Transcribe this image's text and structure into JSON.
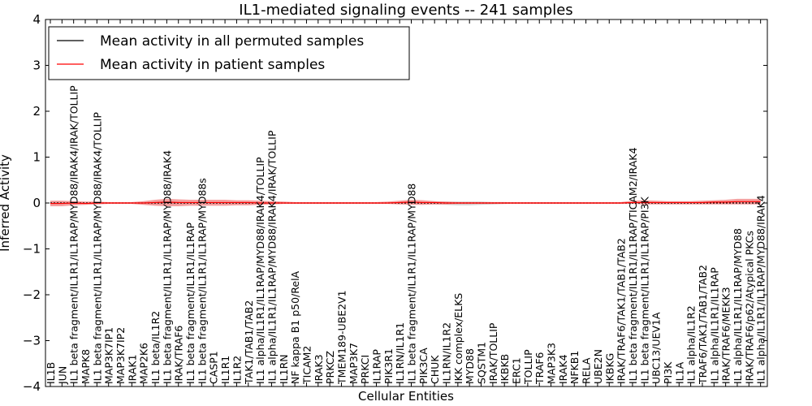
{
  "chart_data": {
    "type": "line",
    "title": "IL1-mediated signaling events -- 241 samples",
    "xlabel": "Cellular Entities",
    "ylabel": "Inferred Activity",
    "ylim": [
      -4,
      4
    ],
    "yticks": [
      -4,
      -3,
      -2,
      -1,
      0,
      1,
      2,
      3,
      4
    ],
    "grid": false,
    "legend_position": "top-left",
    "categories": [
      "IL1B",
      "JUN",
      "IL1 beta fragment/IL1R1/IL1RAP/MYD88/IRAK4/IRAK/TOLLIP",
      "MAPK8",
      "IL1 beta fragment/IL1R1/IL1RAP/MYD88/IRAK4/TOLLIP",
      "MAP3K7IP1",
      "MAP3K7IP2",
      "IRAK1",
      "MAP2K6",
      "IL1 beta/IL1R2",
      "IL1 beta fragment/IL1R1/IL1RAP/MYD88/IRAK4",
      "IRAK/TRAF6",
      "IL1 beta fragment/IL1R1/IL1RAP",
      "IL1 beta fragment/IL1R1/IL1RAP/MYD88s",
      "CASP1",
      "IL1R1",
      "IL1R2",
      "TAK1/TAB1/TAB2",
      "IL1 alpha/IL1R1/IL1RAP/MYD88/IRAK4/TOLLIP",
      "IL1 alpha/IL1R1/IL1RAP/MYD88/IRAK4/IRAK/TOLLIP",
      "IL1RN",
      "NF kappa B1 p50/RelA",
      "TICAM2",
      "IRAK3",
      "PRKCZ",
      "TMEM189-UBE2V1",
      "MAP3K7",
      "PRKCI",
      "IL1RAP",
      "PIK3R1",
      "IL1RN/IL1R1",
      "IL1 beta fragment/IL1R1/IL1RAP/MYD88",
      "PIK3CA",
      "CHUK",
      "IL1RN/IL1R2",
      "IKK complex/ELKS",
      "MYD88",
      "SQSTM1",
      "IRAK/TOLLIP",
      "IKBKB",
      "ERC1",
      "TOLLIP",
      "TRAF6",
      "MAP3K3",
      "IRAK4",
      "NFKB1",
      "RELA",
      "UBE2N",
      "IKBKG",
      "IRAK/TRAF6/TAK1/TAB1/TAB2",
      "IL1 beta fragment/IL1R1/IL1RAP/TICAM2/IRAK4",
      "IL1 beta fragment/IL1R1/IL1RAP/PI3K",
      "UBC13/UEV1A",
      "PI3K",
      "IL1A",
      "IL1 alpha/IL1R2",
      "TRAF6/TAK1/TAB1/TAB2",
      "IL1 alpha/IL1R1/IL1RAP",
      "IRAK/TRAF6/MEKK3",
      "IL1 alpha/IL1R1/IL1RAP/MYD88",
      "IRAK/TRAF6/p62/Atypical PKCs",
      "IL1 alpha/IL1R1/IL1RAP/MYD88/IRAK4"
    ],
    "series": [
      {
        "name": "Mean activity in all permuted samples",
        "color": "#000000",
        "values": [
          0,
          0,
          0,
          0,
          0,
          0,
          0,
          0,
          0,
          0,
          0,
          0,
          0,
          0,
          0,
          0,
          0,
          0,
          0,
          0,
          0,
          0,
          0,
          0,
          0,
          0,
          0,
          0,
          0,
          0,
          0,
          0,
          0,
          0,
          0,
          0,
          0,
          0,
          0,
          0,
          0,
          0,
          0,
          0,
          0,
          0,
          0,
          0,
          0,
          0,
          0,
          0,
          0,
          0,
          0,
          0,
          0,
          0,
          0,
          0,
          0,
          0
        ],
        "band_low": [
          -0.03,
          -0.03,
          -0.02,
          -0.02,
          -0.02,
          -0.01,
          -0.01,
          -0.01,
          -0.02,
          -0.03,
          -0.03,
          -0.03,
          -0.02,
          -0.02,
          -0.02,
          -0.02,
          -0.02,
          -0.02,
          -0.02,
          -0.02,
          -0.01,
          -0.01,
          -0.01,
          -0.01,
          -0.01,
          -0.01,
          -0.01,
          -0.01,
          -0.01,
          -0.01,
          -0.02,
          -0.02,
          -0.02,
          -0.03,
          -0.04,
          -0.05,
          -0.05,
          -0.04,
          -0.03,
          -0.02,
          -0.01,
          -0.01,
          -0.01,
          -0.01,
          -0.01,
          -0.01,
          -0.01,
          -0.01,
          -0.01,
          -0.01,
          -0.01,
          -0.02,
          -0.02,
          -0.02,
          -0.02,
          -0.02,
          -0.02,
          -0.02,
          -0.02,
          -0.02,
          -0.02,
          -0.02
        ],
        "band_high": [
          0.03,
          0.03,
          0.02,
          0.02,
          0.02,
          0.01,
          0.01,
          0.01,
          0.02,
          0.03,
          0.03,
          0.03,
          0.02,
          0.02,
          0.02,
          0.02,
          0.02,
          0.02,
          0.02,
          0.02,
          0.01,
          0.01,
          0.01,
          0.01,
          0.01,
          0.01,
          0.01,
          0.01,
          0.01,
          0.01,
          0.02,
          0.02,
          0.02,
          0.03,
          0.03,
          0.03,
          0.03,
          0.03,
          0.02,
          0.02,
          0.01,
          0.01,
          0.01,
          0.01,
          0.01,
          0.01,
          0.01,
          0.01,
          0.01,
          0.01,
          0.01,
          0.02,
          0.02,
          0.02,
          0.02,
          0.02,
          0.02,
          0.02,
          0.02,
          0.02,
          0.02,
          0.02
        ],
        "band_color": "#bbbbbb"
      },
      {
        "name": "Mean activity in patient samples",
        "color": "#ff0000",
        "values": [
          -0.01,
          -0.01,
          0,
          -0.01,
          0,
          0,
          0,
          0,
          0,
          0.01,
          0.02,
          0.01,
          0.01,
          0.01,
          0.01,
          0.01,
          0.01,
          0.01,
          0,
          0,
          0,
          0,
          0,
          0,
          0,
          0,
          0,
          0,
          0,
          0,
          0.01,
          0.02,
          0.01,
          0.01,
          0,
          0,
          0,
          0,
          0,
          0,
          0,
          0,
          0,
          0,
          0,
          0,
          0,
          0,
          0,
          0,
          0.01,
          0.01,
          0.01,
          0.01,
          0.01,
          0.01,
          0.01,
          0.02,
          0.02,
          0.03,
          0.03,
          0.03
        ],
        "band_low": [
          -0.07,
          -0.07,
          -0.05,
          -0.04,
          -0.03,
          -0.02,
          -0.02,
          -0.02,
          -0.04,
          -0.06,
          -0.07,
          -0.07,
          -0.06,
          -0.06,
          -0.06,
          -0.06,
          -0.05,
          -0.05,
          -0.04,
          -0.03,
          -0.02,
          -0.02,
          -0.02,
          -0.02,
          -0.02,
          -0.02,
          -0.02,
          -0.02,
          -0.02,
          -0.02,
          -0.03,
          -0.04,
          -0.04,
          -0.03,
          -0.03,
          -0.02,
          -0.02,
          -0.02,
          -0.02,
          -0.02,
          -0.02,
          -0.02,
          -0.02,
          -0.02,
          -0.02,
          -0.02,
          -0.02,
          -0.02,
          -0.02,
          -0.02,
          -0.02,
          -0.03,
          -0.03,
          -0.03,
          -0.03,
          -0.03,
          -0.03,
          -0.03,
          -0.03,
          -0.03,
          -0.03,
          -0.03
        ],
        "band_high": [
          0.05,
          0.05,
          0.04,
          0.03,
          0.03,
          0.02,
          0.02,
          0.02,
          0.04,
          0.07,
          0.09,
          0.08,
          0.07,
          0.07,
          0.07,
          0.07,
          0.06,
          0.06,
          0.05,
          0.04,
          0.03,
          0.02,
          0.02,
          0.02,
          0.02,
          0.02,
          0.02,
          0.02,
          0.02,
          0.03,
          0.05,
          0.07,
          0.06,
          0.04,
          0.03,
          0.02,
          0.02,
          0.02,
          0.02,
          0.02,
          0.02,
          0.02,
          0.02,
          0.02,
          0.02,
          0.02,
          0.02,
          0.02,
          0.02,
          0.02,
          0.05,
          0.06,
          0.05,
          0.04,
          0.04,
          0.04,
          0.05,
          0.06,
          0.07,
          0.09,
          0.09,
          0.09
        ],
        "band_color": "#f08080"
      }
    ]
  }
}
